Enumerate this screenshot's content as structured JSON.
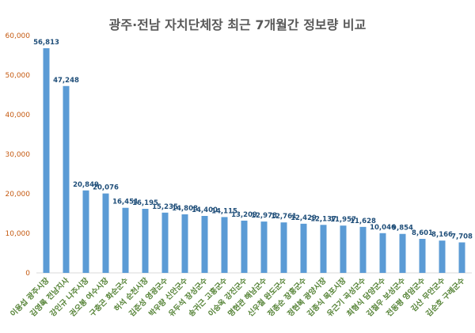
{
  "chart_data": {
    "type": "bar",
    "title": "광주·전남 자치단체장 최근 7개월간 정보량 비교",
    "xlabel": "",
    "ylabel": "",
    "ylim": [
      0,
      60000
    ],
    "yticks": [
      0,
      10000,
      20000,
      30000,
      40000,
      50000,
      60000
    ],
    "ytick_labels": [
      "0",
      "10,000",
      "20,000",
      "30,000",
      "40,000",
      "50,000",
      "60,000"
    ],
    "categories": [
      "이용섭 광주시장",
      "김영록 전남지사",
      "강인규 나주시장",
      "권오봉 여수시장",
      "구충곤 화순군수",
      "허석 순천시장",
      "김준성 영광군수",
      "박우량 신안군수",
      "유두석 장성군수",
      "송귀근 고흥군수",
      "이승옥 강진군수",
      "명현관 해남군수",
      "신우철 완도군수",
      "정종순 장흥군수",
      "정현복 광양시장",
      "김종식 목포시장",
      "유근기 곡성군수",
      "최형식 담양군수",
      "김철우 보성군수",
      "전동평 영암군수",
      "김산 무안군수",
      "김순호 구례군수"
    ],
    "values": [
      56813,
      47248,
      20849,
      20076,
      16451,
      16195,
      15235,
      14808,
      14400,
      14115,
      13209,
      12978,
      12761,
      12429,
      12137,
      11957,
      11628,
      10046,
      9854,
      8601,
      8166,
      7708
    ],
    "data_labels": [
      "56,813",
      "47,248",
      "20,849",
      "20,076",
      "16,451",
      "16,195",
      "15,235",
      "14,808",
      "14,400",
      "14,115",
      "13,209",
      "12,978",
      "12,761",
      "12,429",
      "12,137",
      "11,957",
      "11,628",
      "10,046",
      "9,854",
      "8,601",
      "8,166",
      "7,708"
    ],
    "grid": false,
    "colors": {
      "bar": "#5b9bd5",
      "data_label": "#1f4e79",
      "ytick": "#c55a11",
      "category": "#548235"
    }
  }
}
